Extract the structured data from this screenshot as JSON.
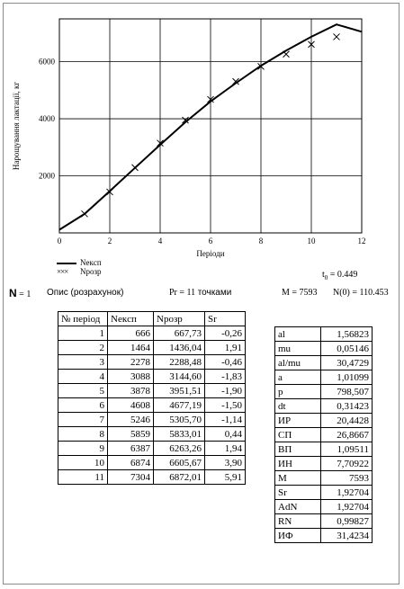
{
  "chart_data": {
    "type": "line",
    "xlabel": "Періоди",
    "ylabel": "Нарощування лактації, кг",
    "xlim": [
      0,
      12
    ],
    "ylim": [
      0,
      7500
    ],
    "xticks": [
      0,
      2,
      4,
      6,
      8,
      10,
      12
    ],
    "yticks": [
      2000,
      4000,
      6000
    ],
    "grid": true,
    "series": [
      {
        "name": "Nекcп",
        "style": "line",
        "x": [
          0,
          1,
          2,
          3,
          4,
          5,
          6,
          7,
          8,
          9,
          10,
          11,
          12
        ],
        "values": [
          110,
          666,
          1464,
          2278,
          3088,
          3878,
          4608,
          5246,
          5859,
          6387,
          6874,
          7304,
          7050
        ]
      },
      {
        "name": "Nрозр",
        "style": "cross",
        "x": [
          1,
          2,
          3,
          4,
          5,
          6,
          7,
          8,
          9,
          10,
          11
        ],
        "values": [
          668,
          1436,
          2288,
          3145,
          3952,
          4677,
          5306,
          5833,
          6263,
          6606,
          6872
        ]
      }
    ]
  },
  "summary": {
    "t0_label": "t",
    "t0_sub": "0",
    "t0_value": "0.449",
    "n_label": "N",
    "n_value": "1",
    "opys": "Опис (розрахунок)",
    "pr_label": "Pr",
    "pr_value": "11",
    "points_label": "точками",
    "m_label": "M",
    "m_value": "7593",
    "n0_label": "N(0)",
    "n0_value": "110.453"
  },
  "periods_table": {
    "headers": [
      "№ період",
      "Nекcп",
      "Nрозр",
      "Sr"
    ],
    "rows": [
      [
        "1",
        "666",
        "667,73",
        "-0,26"
      ],
      [
        "2",
        "1464",
        "1436,04",
        "1,91"
      ],
      [
        "3",
        "2278",
        "2288,48",
        "-0,46"
      ],
      [
        "4",
        "3088",
        "3144,60",
        "-1,83"
      ],
      [
        "5",
        "3878",
        "3951,51",
        "-1,90"
      ],
      [
        "6",
        "4608",
        "4677,19",
        "-1,50"
      ],
      [
        "7",
        "5246",
        "5305,70",
        "-1,14"
      ],
      [
        "8",
        "5859",
        "5833,01",
        "0,44"
      ],
      [
        "9",
        "6387",
        "6263,26",
        "1,94"
      ],
      [
        "10",
        "6874",
        "6605,67",
        "3,90"
      ],
      [
        "11",
        "7304",
        "6872,01",
        "5,91"
      ]
    ]
  },
  "parameters_table": {
    "rows": [
      [
        "al",
        "1,56823"
      ],
      [
        "mu",
        "0,05146"
      ],
      [
        "al/mu",
        "30,4729"
      ],
      [
        "a",
        "1,01099"
      ],
      [
        "p",
        "798,507"
      ],
      [
        "dt",
        "0,31423"
      ],
      [
        "ИР",
        "20,4428"
      ],
      [
        "СП",
        "26,8667"
      ],
      [
        "ВП",
        "1,09511"
      ],
      [
        "ИН",
        "7,70922"
      ],
      [
        "M",
        "7593"
      ],
      [
        "Sr",
        "1,92704"
      ],
      [
        "AdN",
        "1,92704"
      ],
      [
        "RN",
        "0,99827"
      ],
      [
        "ИФ",
        "31,4234"
      ]
    ]
  }
}
